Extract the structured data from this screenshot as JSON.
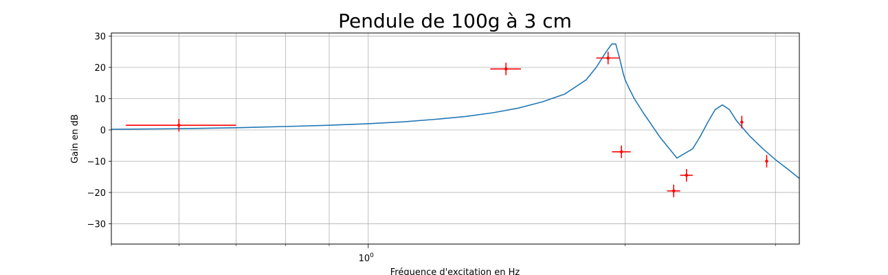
{
  "chart_data": {
    "type": "scatter",
    "title": "Pendule de 100g à 3 cm",
    "xlabel": "Fréquence d'excitation en Hz",
    "ylabel": "Gain en dB",
    "xscale": "log",
    "xlim": [
      0.5,
      3.2
    ],
    "ylim": [
      -36.5,
      31
    ],
    "grid": true,
    "x_ticks": [
      {
        "value": 1,
        "label": "10",
        "exponent": "0"
      }
    ],
    "y_ticks": [
      -30,
      -20,
      -10,
      0,
      10,
      20,
      30
    ],
    "colors": {
      "model": "#1f77b4",
      "measurements": "#ff0000",
      "grid": "#b0b0b0"
    },
    "series": [
      {
        "kind": "line",
        "x": [
          0.5,
          0.6,
          0.7,
          0.8,
          0.9,
          1.0,
          1.1,
          1.2,
          1.3,
          1.4,
          1.5,
          1.6,
          1.7,
          1.8,
          1.85,
          1.9,
          1.93,
          1.95,
          1.97,
          1.99,
          2.0,
          2.02,
          2.05,
          2.1,
          2.2,
          2.3,
          2.4,
          2.45,
          2.5,
          2.55,
          2.6,
          2.65,
          2.7,
          2.8,
          2.9,
          3.0,
          3.1,
          3.2
        ],
        "y": [
          0.2,
          0.4,
          0.7,
          1.1,
          1.5,
          2.0,
          2.6,
          3.4,
          4.3,
          5.5,
          7.0,
          9.0,
          11.5,
          16.0,
          20.0,
          25.0,
          27.5,
          27.5,
          23.0,
          18.0,
          16.0,
          13.5,
          10.0,
          5.5,
          -2.5,
          -9.0,
          -6.0,
          -2.0,
          2.5,
          6.5,
          8.0,
          6.5,
          3.0,
          -2.0,
          -6.0,
          -9.5,
          -12.5,
          -15.5
        ]
      },
      {
        "kind": "errorbar",
        "points": [
          {
            "x": 0.6,
            "y": 1.5,
            "xerr": [
              0.08,
              0.1
            ],
            "yerr": 2
          },
          {
            "x": 1.45,
            "y": 19.5,
            "xerr": [
              0.06,
              0.06
            ],
            "yerr": 2
          },
          {
            "x": 1.91,
            "y": 23,
            "xerr": [
              0.06,
              0.06
            ],
            "yerr": 2
          },
          {
            "x": 1.98,
            "y": -7,
            "xerr": [
              0.05,
              0.05
            ],
            "yerr": 2
          },
          {
            "x": 2.28,
            "y": -19.5,
            "xerr": [
              0.04,
              0.04
            ],
            "yerr": 2
          },
          {
            "x": 2.36,
            "y": -14.5,
            "xerr": [
              0.04,
              0.04
            ],
            "yerr": 2
          },
          {
            "x": 2.74,
            "y": 2.5,
            "xerr": [
              0,
              0
            ],
            "yerr": 2
          },
          {
            "x": 2.93,
            "y": -10,
            "xerr": [
              0,
              0
            ],
            "yerr": 2
          }
        ]
      }
    ]
  }
}
